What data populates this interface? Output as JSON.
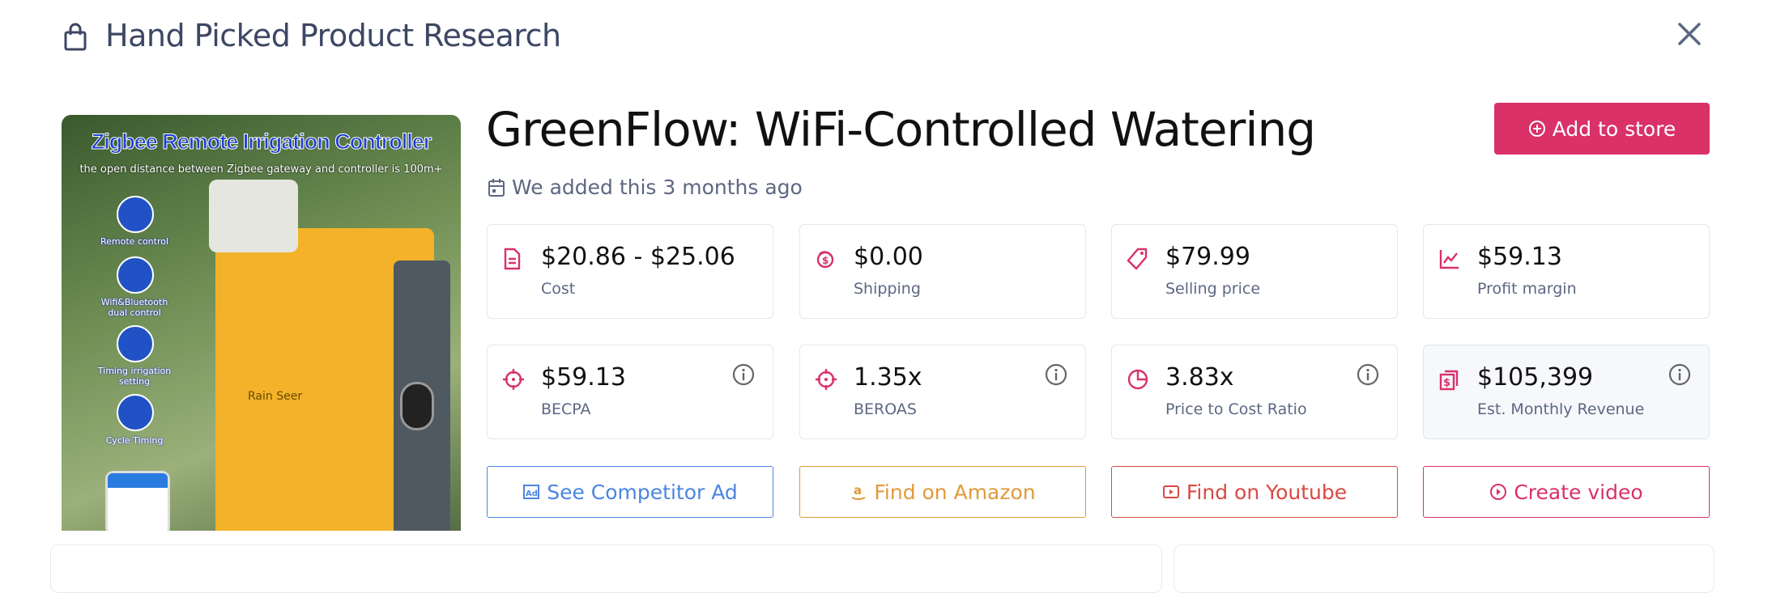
{
  "header": {
    "title": "Hand Picked Product Research",
    "icon": "shopping-bag-icon",
    "close_icon": "close-icon"
  },
  "image": {
    "headline": "Zigbee Remote Irrigation Controller",
    "subline": "the open distance between Zigbee gateway and controller is 100m+",
    "features": [
      "Remote control",
      "Wifi&Bluetooth dual control",
      "Timing irrigation setting",
      "Cycle Timing"
    ],
    "brand": "Rain Seer"
  },
  "product": {
    "title": "GreenFlow: WiFi-Controlled Watering",
    "added": "We added this 3 months ago",
    "add_button": "Add to store"
  },
  "metrics": [
    {
      "value": "$20.86 - $25.06",
      "label": "Cost",
      "icon": "document-icon",
      "info": false
    },
    {
      "value": "$0.00",
      "label": "Shipping",
      "icon": "coins-icon",
      "info": false
    },
    {
      "value": "$79.99",
      "label": "Selling price",
      "icon": "tag-icon",
      "info": false
    },
    {
      "value": "$59.13",
      "label": "Profit margin",
      "icon": "chart-line-icon",
      "info": false
    },
    {
      "value": "$59.13",
      "label": "BECPA",
      "icon": "crosshair-icon",
      "info": true
    },
    {
      "value": "1.35x",
      "label": "BEROAS",
      "icon": "crosshair-icon",
      "info": true
    },
    {
      "value": "3.83x",
      "label": "Price to Cost Ratio",
      "icon": "pie-chart-icon",
      "info": true
    },
    {
      "value": "$105,399",
      "label": "Est. Monthly Revenue",
      "icon": "money-stack-icon",
      "info": true
    }
  ],
  "actions": [
    {
      "label": "See Competitor Ad",
      "color": "#4a86e0",
      "icon": "ad-icon"
    },
    {
      "label": "Find on Amazon",
      "color": "#e09a3a",
      "icon": "amazon-icon"
    },
    {
      "label": "Find on Youtube",
      "color": "#d94a44",
      "icon": "youtube-icon"
    },
    {
      "label": "Create video",
      "color": "#d93168",
      "icon": "play-circle-icon"
    }
  ],
  "colors": {
    "accent": "#d93168",
    "heading": "#3d4763",
    "muted": "#5d6782"
  }
}
